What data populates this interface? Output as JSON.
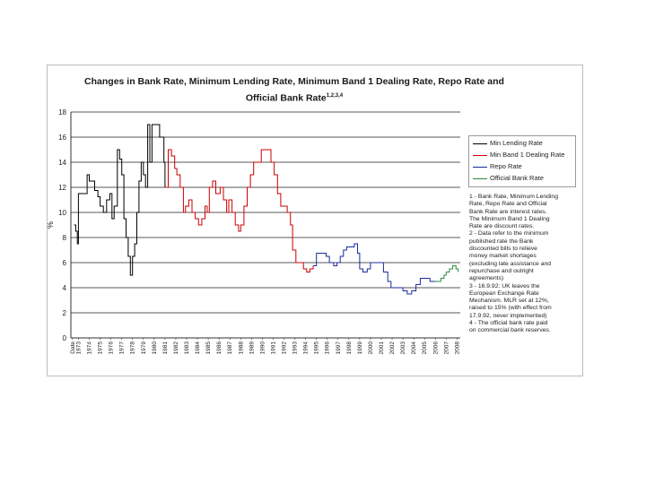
{
  "chart_data": {
    "type": "line",
    "title_main": "Changes in Bank Rate, Minimum Lending Rate, Minimum Band 1 Dealing Rate, Repo Rate and",
    "title_second": "Official Bank Rate",
    "title_superscript": "1,2,3,4",
    "ylabel": "%",
    "ylim": [
      0,
      18
    ],
    "yticks": [
      0,
      2,
      4,
      6,
      8,
      10,
      12,
      14,
      16,
      18
    ],
    "ytick_labels": [
      "0",
      "2",
      "4",
      "6",
      "8",
      "10",
      "12",
      "14",
      "16",
      "18"
    ],
    "xlim": [
      1972.3,
      2008.3
    ],
    "xlabel_first": "Date",
    "xticks": [
      "1973",
      "1974",
      "1975",
      "1976",
      "1977",
      "1978",
      "1979",
      "1980",
      "1981",
      "1982",
      "1983",
      "1984",
      "1985",
      "1986",
      "1987",
      "1988",
      "1989",
      "1990",
      "1991",
      "1992",
      "1993",
      "1994",
      "1995",
      "1996",
      "1997",
      "1998",
      "1999",
      "2000",
      "2001",
      "2002",
      "2003",
      "2004",
      "2005",
      "2006",
      "2007",
      "2008"
    ],
    "series": [
      {
        "name": "Min Lending Rate",
        "color": "#000000",
        "x": [
          1972.6,
          1972.75,
          1972.9,
          1973.0,
          1973.4,
          1973.6,
          1973.8,
          1974.0,
          1974.5,
          1974.8,
          1975.0,
          1975.3,
          1975.6,
          1975.9,
          1976.1,
          1976.3,
          1976.6,
          1976.8,
          1977.0,
          1977.2,
          1977.4,
          1977.6,
          1977.8,
          1978.0,
          1978.2,
          1978.4,
          1978.6,
          1978.8,
          1979.0,
          1979.2,
          1979.4,
          1979.6,
          1979.8,
          1980.0,
          1980.5,
          1980.9,
          1981.0
        ],
        "y": [
          9.0,
          8.5,
          7.5,
          11.5,
          11.5,
          11.5,
          13.0,
          12.5,
          11.75,
          11.25,
          10.5,
          10.0,
          11.0,
          11.5,
          9.5,
          10.5,
          15.0,
          14.25,
          13.0,
          9.5,
          8.0,
          6.5,
          5.0,
          6.5,
          7.5,
          10.0,
          12.5,
          14.0,
          13.0,
          12.0,
          17.0,
          14.0,
          17.0,
          17.0,
          16.0,
          14.0,
          12.0
        ]
      },
      {
        "name": "Min Band 1 Dealing Rate",
        "color": "#cc0000",
        "x": [
          1981.0,
          1981.3,
          1981.6,
          1981.9,
          1982.1,
          1982.4,
          1982.7,
          1982.9,
          1983.2,
          1983.5,
          1983.8,
          1984.1,
          1984.4,
          1984.7,
          1984.9,
          1985.1,
          1985.4,
          1985.7,
          1985.9,
          1986.1,
          1986.4,
          1986.7,
          1986.9,
          1987.2,
          1987.5,
          1987.8,
          1988.0,
          1988.3,
          1988.6,
          1988.9,
          1989.2,
          1989.6,
          1989.9,
          1990.2,
          1990.6,
          1990.8,
          1991.1,
          1991.4,
          1991.7,
          1992.0,
          1992.3,
          1992.6,
          1992.8,
          1993.1,
          1993.4,
          1993.8,
          1994.1,
          1994.4,
          1994.7
        ],
        "y": [
          12.0,
          15.0,
          14.5,
          13.5,
          13.0,
          12.0,
          10.0,
          10.5,
          11.0,
          10.0,
          9.5,
          9.0,
          9.5,
          10.5,
          10.0,
          12.0,
          12.5,
          11.5,
          11.5,
          12.0,
          11.0,
          10.0,
          11.0,
          10.0,
          9.0,
          8.5,
          9.0,
          10.5,
          12.0,
          13.0,
          14.0,
          14.0,
          15.0,
          15.0,
          15.0,
          14.0,
          13.0,
          11.5,
          10.5,
          10.5,
          10.0,
          9.0,
          7.0,
          6.0,
          6.0,
          5.5,
          5.25,
          5.5,
          5.75
        ]
      },
      {
        "name": "Repo Rate",
        "color": "#1a2a9c",
        "x": [
          1994.7,
          1995.0,
          1995.5,
          1995.9,
          1996.2,
          1996.6,
          1996.9,
          1997.2,
          1997.5,
          1997.8,
          1998.0,
          1998.5,
          1998.8,
          1999.0,
          1999.3,
          1999.7,
          2000.0,
          2000.4,
          2000.8,
          2001.2,
          2001.6,
          2001.9,
          2002.5,
          2003.0,
          2003.4,
          2003.8,
          2004.2,
          2004.6,
          2004.9,
          2005.5,
          2006.0
        ],
        "y": [
          5.75,
          6.75,
          6.75,
          6.5,
          6.0,
          5.75,
          6.0,
          6.5,
          7.0,
          7.25,
          7.25,
          7.5,
          6.75,
          5.5,
          5.25,
          5.5,
          6.0,
          6.0,
          6.0,
          5.25,
          4.5,
          4.0,
          4.0,
          3.75,
          3.5,
          3.75,
          4.25,
          4.75,
          4.75,
          4.5,
          4.5
        ]
      },
      {
        "name": "Official Bank Rate",
        "color": "#2e8b3e",
        "x": [
          2006.0,
          2006.5,
          2006.8,
          2007.0,
          2007.3,
          2007.6,
          2007.9,
          2008.1
        ],
        "y": [
          4.5,
          4.75,
          5.0,
          5.25,
          5.5,
          5.75,
          5.5,
          5.25
        ]
      }
    ],
    "notes": [
      "1 - Bank Rate, Minimum Lending",
      "Rate, Repo Rate and Official",
      "Bank Rate are interest rates.",
      "The Minimum Band 1 Dealing",
      "Rate are discount rates.",
      "2 - Data refer to the minimum",
      "published rate the Bank",
      "discounted bills to relieve",
      "money market shortages",
      "(excluding late assistance and",
      "repurchase and outright",
      "agreements)",
      "3 - 16.9.92: UK leaves the",
      "European Exchange Rate",
      "Mechanism. MLR set at 12%,",
      "raised to 15% (with effect from",
      "17.9.92, never implemented)",
      "4 - The official bank rate paid",
      "on commercial bank reserves."
    ]
  }
}
